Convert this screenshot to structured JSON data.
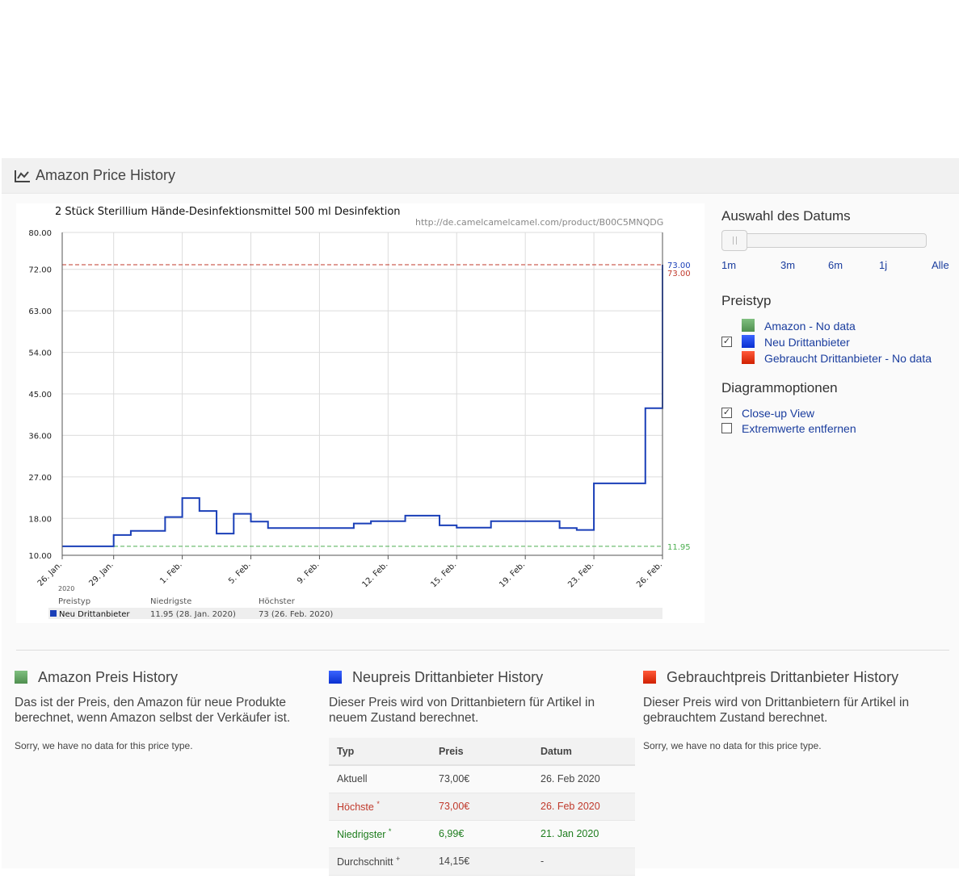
{
  "panel": {
    "title": "Amazon Price History",
    "icon": "line-chart-icon"
  },
  "chart_data": {
    "type": "line",
    "title": "2 Stück Sterillium Hände-Desinfektionsmittel 500 ml Desinfektion",
    "url": "http://de.camelcamelcamel.com/product/B00C5MNQDG",
    "ylim": [
      10,
      80
    ],
    "y_ticks": [
      "80.00",
      "72.00",
      "63.00",
      "54.00",
      "45.00",
      "36.00",
      "27.00",
      "18.00",
      "10.00"
    ],
    "y_tick_values": [
      80,
      72,
      63,
      54,
      45,
      36,
      27,
      18,
      10
    ],
    "x_ticks": [
      "26. Jan.",
      "29. Jan.",
      "1. Feb.",
      "5. Feb.",
      "9. Feb.",
      "12. Feb.",
      "15. Feb.",
      "19. Feb.",
      "23. Feb.",
      "26. Feb."
    ],
    "x_tick_days": [
      0,
      3,
      7,
      11,
      15,
      19,
      23,
      27,
      31,
      35
    ],
    "year_label": "2020",
    "series": [
      {
        "name": "Neu Drittanbieter",
        "color": "#1a3fb8",
        "step_points": [
          [
            0,
            11.95
          ],
          [
            3,
            14.4
          ],
          [
            4,
            15.3
          ],
          [
            6,
            18.3
          ],
          [
            7,
            22.4
          ],
          [
            8,
            19.6
          ],
          [
            9,
            14.7
          ],
          [
            10,
            19.0
          ],
          [
            11,
            17.3
          ],
          [
            12,
            15.9
          ],
          [
            17,
            16.9
          ],
          [
            18,
            17.4
          ],
          [
            20,
            18.6
          ],
          [
            22,
            16.5
          ],
          [
            23,
            16.0
          ],
          [
            25,
            17.4
          ],
          [
            29,
            15.9
          ],
          [
            30,
            15.5
          ],
          [
            31,
            25.6
          ],
          [
            34,
            41.9
          ],
          [
            35,
            73.0
          ]
        ]
      }
    ],
    "reference_lines": [
      {
        "value": 73.0,
        "label": "73.00",
        "color": "#c0392b"
      },
      {
        "value": 11.95,
        "label": "11.95",
        "color": "#4caf50"
      }
    ],
    "current_label": "73.00",
    "summary": {
      "headers": [
        "Preistyp",
        "Niedrigste",
        "Höchster"
      ],
      "row": {
        "name": "Neu Drittanbieter",
        "low": "11.95 (28. Jan. 2020)",
        "high": "73 (26. Feb. 2020)"
      }
    },
    "grid": true
  },
  "sidebar": {
    "date_heading": "Auswahl des Datums",
    "ranges": [
      "1m",
      "3m",
      "6m",
      "1j",
      "Alle"
    ],
    "price_type_heading": "Preistyp",
    "price_types": [
      {
        "label": "Amazon - No data",
        "color": "#5a9a5a",
        "checked": false,
        "has_checkbox": false
      },
      {
        "label": "Neu Drittanbieter",
        "color": "#0a36e0",
        "checked": true,
        "has_checkbox": true
      },
      {
        "label": "Gebraucht Drittanbieter - No data",
        "color": "#e02b10",
        "checked": false,
        "has_checkbox": false
      }
    ],
    "options_heading": "Diagrammoptionen",
    "options": [
      {
        "label": "Close-up View",
        "checked": true
      },
      {
        "label": "Extremwerte entfernen",
        "checked": false
      }
    ]
  },
  "sections": [
    {
      "title": "Amazon Preis History",
      "color": "#5a9a5a",
      "desc": "Das ist der Preis, den Amazon für neue Produkte berechnet, wenn Amazon selbst der Verkäufer ist.",
      "note": "Sorry, we have no data for this price type."
    },
    {
      "title": "Neupreis Drittanbieter History",
      "color": "#0a36e0",
      "desc": "Dieser Preis wird von Drittanbietern für Artikel in neuem Zustand berechnet.",
      "note": ""
    },
    {
      "title": "Gebrauchtpreis Drittanbieter History",
      "color": "#e02b10",
      "desc": "Dieser Preis wird von Drittanbietern für Artikel in gebrauchtem Zustand berechnet.",
      "note": "Sorry, we have no data for this price type."
    }
  ],
  "price_table": {
    "headers": [
      "Typ",
      "Preis",
      "Datum"
    ],
    "rows": [
      {
        "type": "Aktuell",
        "sup": "",
        "price": "73,00€",
        "date": "26. Feb 2020"
      },
      {
        "type": "Höchste",
        "sup": "*",
        "price": "73,00€",
        "date": "26. Feb 2020"
      },
      {
        "type": "Niedrigster",
        "sup": "*",
        "price": "6,99€",
        "date": "21. Jan 2020"
      },
      {
        "type": "Durchschnitt",
        "sup": "+",
        "price": "14,15€",
        "date": "-"
      }
    ]
  }
}
